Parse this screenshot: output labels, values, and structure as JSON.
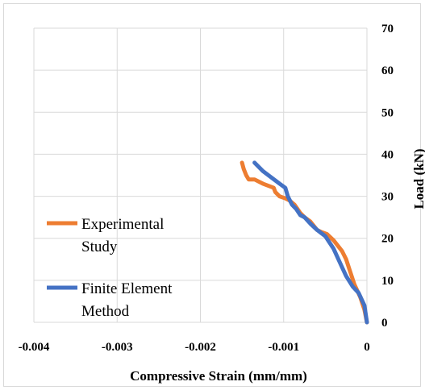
{
  "chart_data": {
    "type": "line",
    "title": "",
    "xlabel": "Compressive Strain (mm/mm)",
    "ylabel": "Load (kN)",
    "xlim": [
      -0.004,
      0
    ],
    "ylim": [
      0,
      70
    ],
    "x_ticks": [
      -0.004,
      -0.003,
      -0.002,
      -0.001,
      0
    ],
    "x_tick_labels": [
      "-0.004",
      "-0.003",
      "-0.002",
      "-0.001",
      "0"
    ],
    "y_ticks": [
      0,
      10,
      20,
      30,
      40,
      50,
      60,
      70
    ],
    "y_tick_labels": [
      "0",
      "10",
      "20",
      "30",
      "40",
      "50",
      "60",
      "70"
    ],
    "grid": true,
    "legend_position": "bottom-left",
    "series": [
      {
        "name": "Experimental Study",
        "color": "#ED7D31",
        "legend_lines": [
          "Experimental",
          "Study"
        ],
        "points": [
          [
            0,
            0
          ],
          [
            -3e-05,
            3
          ],
          [
            -8e-05,
            6
          ],
          [
            -0.00015,
            9
          ],
          [
            -0.0002,
            12
          ],
          [
            -0.00025,
            15
          ],
          [
            -0.0003,
            17
          ],
          [
            -0.0004,
            19.5
          ],
          [
            -0.00048,
            21
          ],
          [
            -0.00055,
            21.5
          ],
          [
            -0.0006,
            22
          ],
          [
            -0.00068,
            24
          ],
          [
            -0.00075,
            25
          ],
          [
            -0.0008,
            26
          ],
          [
            -0.00087,
            28
          ],
          [
            -0.00093,
            29
          ],
          [
            -0.00098,
            29.5
          ],
          [
            -0.00105,
            30
          ],
          [
            -0.0011,
            31
          ],
          [
            -0.00112,
            32
          ],
          [
            -0.00125,
            33
          ],
          [
            -0.00135,
            34
          ],
          [
            -0.00142,
            34
          ],
          [
            -0.00145,
            35
          ],
          [
            -0.00148,
            36.5
          ],
          [
            -0.0015,
            38
          ]
        ]
      },
      {
        "name": "Finite Element Method",
        "color": "#4472C4",
        "legend_lines": [
          "Finite Element",
          "Method"
        ],
        "points": [
          [
            0,
            0
          ],
          [
            -3e-05,
            4
          ],
          [
            -0.0001,
            7
          ],
          [
            -0.00017,
            8.5
          ],
          [
            -0.00025,
            11
          ],
          [
            -0.00032,
            14
          ],
          [
            -0.0004,
            17.5
          ],
          [
            -0.0005,
            20.5
          ],
          [
            -0.0006,
            22
          ],
          [
            -0.00068,
            23.5
          ],
          [
            -0.00075,
            25
          ],
          [
            -0.0008,
            25.5
          ],
          [
            -0.00085,
            27
          ],
          [
            -0.0009,
            28
          ],
          [
            -0.00095,
            30
          ],
          [
            -0.00098,
            32
          ],
          [
            -0.00105,
            33
          ],
          [
            -0.00115,
            34.5
          ],
          [
            -0.00125,
            36
          ],
          [
            -0.0013,
            37
          ],
          [
            -0.00135,
            38
          ]
        ]
      }
    ]
  }
}
